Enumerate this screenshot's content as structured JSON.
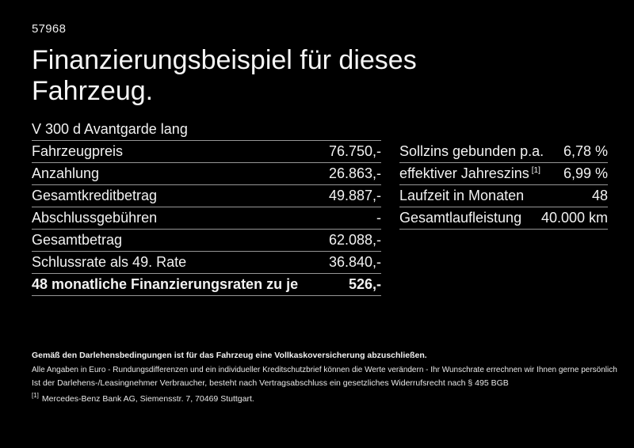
{
  "page": {
    "id_number": "57968",
    "title_line1": "Finanzierungsbeispiel für dieses",
    "title_line2": "Fahrzeug.",
    "vehicle": "V 300 d Avantgarde lang"
  },
  "left_table": {
    "rows": [
      {
        "label": "Fahrzeugpreis",
        "value": "76.750,-"
      },
      {
        "label": "Anzahlung",
        "value": "26.863,-"
      },
      {
        "label": "Gesamtkreditbetrag",
        "value": "49.887,-"
      },
      {
        "label": "Abschlussgebühren",
        "value": "-"
      },
      {
        "label": "Gesamtbetrag",
        "value": "62.088,-"
      },
      {
        "label": "Schlussrate als 49. Rate",
        "value": "36.840,-"
      },
      {
        "label": "48 monatliche Finanzierungsraten zu je",
        "value": "526,-",
        "bold": true
      }
    ]
  },
  "right_table": {
    "rows": [
      {
        "label": "Sollzins gebunden p.a.",
        "value": "6,78 %"
      },
      {
        "label": "effektiver Jahreszins",
        "label_sup": "[1]",
        "value": "6,99 %"
      },
      {
        "label": "Laufzeit in Monaten",
        "value": "48"
      },
      {
        "label": "Gesamtlaufleistung",
        "value": "40.000 km"
      }
    ]
  },
  "footer": {
    "line_bold": "Gemäß den Darlehensbedingungen ist für das Fahrzeug eine Vollkaskoversicherung abzuschließen.",
    "line2": "Alle Angaben in Euro - Rundungsdifferenzen und ein individueller Kreditschutzbrief können die Werte verändern - Ihr Wunschrate errechnen wir Ihnen gerne persönlich",
    "line3": "Ist der Darlehens-/Leasingnehmer Verbraucher, besteht nach Vertragsabschluss ein gesetzliches Widerrufsrecht nach § 495 BGB",
    "footnote_marker": "[1]",
    "footnote_text": "Mercedes-Benz Bank AG, Siemensstr. 7, 70469 Stuttgart."
  },
  "colors": {
    "background": "#000000",
    "text": "#f2f2f2",
    "separator": "#969696"
  }
}
